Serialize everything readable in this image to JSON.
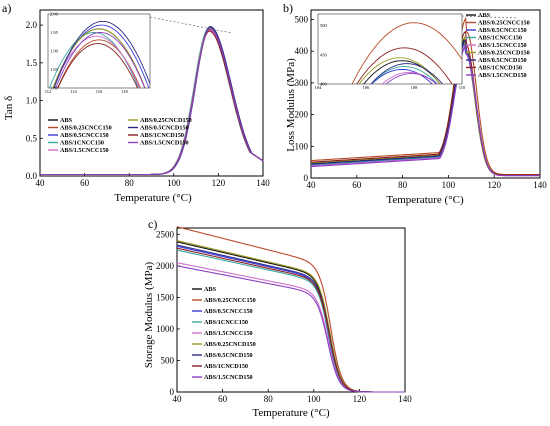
{
  "colors": {
    "ABS": "#111111",
    "ABS/0.25CNCC150": "#b84a2a",
    "ABS/0.5CNCC150": "#3b3bd6",
    "ABS/1CNCC150": "#3aa8a0",
    "ABS/1.5CNCC150": "#d070d0",
    "ABS/0.25CNCD150": "#9a9a20",
    "ABS/0.5CNCD150": "#2a2a8a",
    "ABS/1CNCD150": "#8a2020",
    "ABS/1.5CNCD150": "#8a40c0"
  },
  "chart_data": [
    {
      "id": "a",
      "type": "line",
      "panel_label": "a)",
      "xlabel": "Temperature (°C)",
      "ylabel": "Tan δ",
      "xlim": [
        40,
        140
      ],
      "ylim": [
        0,
        2.2
      ],
      "xticks": [
        40,
        60,
        80,
        100,
        120,
        140
      ],
      "yticks": [
        0.0,
        0.5,
        1.0,
        1.5,
        2.0
      ],
      "ytick_labels": [
        "0.0",
        "0.5",
        "1.0",
        "1.5",
        "2.0"
      ],
      "legend": {
        "placement": "lower-left, two columns",
        "col1": [
          {
            "label": "ABS",
            "series": "ABS"
          },
          {
            "label": "ABS/0.25CNCC150",
            "series": "ABS/0.25CNCC150"
          },
          {
            "label": "ABS/0.5CNCC150",
            "series": "ABS/0.5CNCC150"
          },
          {
            "label": "ABS/1CNCC150",
            "series": "ABS/1CNCC150"
          },
          {
            "label": "ABS/1.5CNCC150",
            "series": "ABS/1.5CNCC150"
          }
        ],
        "col2": [
          {
            "label": "ABS/0.25CNCD150",
            "series": "ABS/0.25CNCD150"
          },
          {
            "label": "ABS/0.5CNCD150",
            "series": "ABS/0.5CNCD150"
          },
          {
            "label": "ABS/1CNCD150",
            "series": "ABS/1CNCD150"
          },
          {
            "label": "ABS/1.5CNCD150",
            "series": "ABS/1.5CNCD150"
          }
        ]
      },
      "series": [
        {
          "name": "ABS",
          "peak_x": 116,
          "peak_y": 1.96,
          "base_y": 0.02
        },
        {
          "name": "ABS/0.25CNCC150",
          "peak_x": 116,
          "peak_y": 1.93,
          "base_y": 0.02
        },
        {
          "name": "ABS/0.5CNCC150",
          "peak_x": 116.2,
          "peak_y": 1.97,
          "base_y": 0.02
        },
        {
          "name": "ABS/1CNCC150",
          "peak_x": 115.6,
          "peak_y": 1.95,
          "base_y": 0.02
        },
        {
          "name": "ABS/1.5CNCC150",
          "peak_x": 115.8,
          "peak_y": 1.94,
          "base_y": 0.02
        },
        {
          "name": "ABS/0.25CNCD150",
          "peak_x": 116.0,
          "peak_y": 1.96,
          "base_y": 0.02
        },
        {
          "name": "ABS/0.5CNCD150",
          "peak_x": 116.3,
          "peak_y": 1.98,
          "base_y": 0.02
        },
        {
          "name": "ABS/1CNCD150",
          "peak_x": 115.9,
          "peak_y": 1.92,
          "base_y": 0.02
        },
        {
          "name": "ABS/1.5CNCD150",
          "peak_x": 116.1,
          "peak_y": 1.95,
          "base_y": 0.02
        }
      ],
      "inset": {
        "xlim": [
          112,
          120
        ],
        "ylim": [
          1.8,
          2.0
        ],
        "xticks": [
          112,
          114,
          116,
          118
        ],
        "yticks": [
          1.8,
          1.85,
          1.9,
          1.95,
          2.0
        ],
        "ytick_labels": [
          "1.80",
          "1.85",
          "1.90",
          "1.95",
          "2.00"
        ]
      }
    },
    {
      "id": "b",
      "type": "line",
      "panel_label": "b)",
      "xlabel": "Temperature (°C)",
      "ylabel": "Loss Modulus (MPa)",
      "xlim": [
        40,
        140
      ],
      "ylim": [
        0,
        530
      ],
      "xticks": [
        40,
        60,
        80,
        100,
        120,
        140
      ],
      "yticks": [
        0,
        100,
        200,
        300,
        400,
        500
      ],
      "ytick_labels": [
        "0",
        "100",
        "200",
        "300",
        "400",
        "500"
      ],
      "legend": {
        "placement": "top-right, one column",
        "col1": [
          {
            "label": "ABS",
            "series": "ABS"
          },
          {
            "label": "ABS/0.25CNCC150",
            "series": "ABS/0.25CNCC150"
          },
          {
            "label": "ABS/0.5CNCC150",
            "series": "ABS/0.5CNCC150"
          },
          {
            "label": "ABS/1CNCC150",
            "series": "ABS/1CNCC150"
          },
          {
            "label": "ABS/1.5CNCC150",
            "series": "ABS/1.5CNCC150"
          },
          {
            "label": "ABS/0.25CNCD150",
            "series": "ABS/0.25CNCD150"
          },
          {
            "label": "ABS/0.5CNCD150",
            "series": "ABS/0.5CNCD150"
          },
          {
            "label": "ABS/1CNCD150",
            "series": "ABS/1CNCD150"
          },
          {
            "label": "ABS/1.5CNCD150",
            "series": "ABS/1.5CNCD150"
          }
        ]
      },
      "series": [
        {
          "name": "ABS",
          "peak_x": 107.5,
          "peak_y": 440,
          "base_y": 45
        },
        {
          "name": "ABS/0.25CNCC150",
          "peak_x": 108,
          "peak_y": 505,
          "base_y": 55
        },
        {
          "name": "ABS/0.5CNCC150",
          "peak_x": 107.5,
          "peak_y": 425,
          "base_y": 40
        },
        {
          "name": "ABS/1CNCC150",
          "peak_x": 107.6,
          "peak_y": 430,
          "base_y": 42
        },
        {
          "name": "ABS/1.5CNCC150",
          "peak_x": 107.8,
          "peak_y": 420,
          "base_y": 38
        },
        {
          "name": "ABS/0.25CNCD150",
          "peak_x": 107.4,
          "peak_y": 445,
          "base_y": 48
        },
        {
          "name": "ABS/0.5CNCD150",
          "peak_x": 107.7,
          "peak_y": 435,
          "base_y": 44
        },
        {
          "name": "ABS/1CNCD150",
          "peak_x": 107.6,
          "peak_y": 462,
          "base_y": 50
        },
        {
          "name": "ABS/1.5CNCD150",
          "peak_x": 107.9,
          "peak_y": 418,
          "base_y": 36
        }
      ],
      "inset": {
        "xlim": [
          104,
          110
        ],
        "ylim": [
          400,
          520
        ],
        "xticks": [
          104,
          106,
          108,
          110
        ],
        "yticks": [
          400,
          450,
          500
        ],
        "ytick_labels": [
          "400",
          "450",
          "500"
        ]
      }
    },
    {
      "id": "c",
      "type": "line",
      "panel_label": "c)",
      "xlabel": "Temperature (°C)",
      "ylabel": "Storage Modulus (MPa)",
      "xlim": [
        40,
        140
      ],
      "ylim": [
        0,
        2600
      ],
      "xticks": [
        40,
        60,
        80,
        100,
        120,
        140
      ],
      "yticks": [
        0,
        500,
        1000,
        1500,
        2000,
        2500
      ],
      "ytick_labels": [
        "0",
        "500",
        "1000",
        "1500",
        "2000",
        "2500"
      ],
      "legend": {
        "placement": "center-left, one column",
        "col1": [
          {
            "label": "ABS",
            "series": "ABS"
          },
          {
            "label": "ABS/0.25CNCC150",
            "series": "ABS/0.25CNCC150"
          },
          {
            "label": "ABS/0.5CNCC150",
            "series": "ABS/0.5CNCC150"
          },
          {
            "label": "ABS/1CNCC150",
            "series": "ABS/1CNCC150"
          },
          {
            "label": "ABS/1.5CNCC150",
            "series": "ABS/1.5CNCC150"
          },
          {
            "label": "ABS/0.25CNCD150",
            "series": "ABS/0.25CNCD150"
          },
          {
            "label": "ABS/0.5CNCD150",
            "series": "ABS/0.5CNCD150"
          },
          {
            "label": "ABS/1CNCD150",
            "series": "ABS/1CNCD150"
          },
          {
            "label": "ABS/1.5CNCD150",
            "series": "ABS/1.5CNCD150"
          }
        ]
      },
      "series": [
        {
          "name": "ABS",
          "start_y": 2380,
          "drop_x": 107
        },
        {
          "name": "ABS/0.25CNCC150",
          "start_y": 2620,
          "drop_x": 107.5
        },
        {
          "name": "ABS/0.5CNCC150",
          "start_y": 2310,
          "drop_x": 106.5
        },
        {
          "name": "ABS/1CNCC150",
          "start_y": 2250,
          "drop_x": 106.8
        },
        {
          "name": "ABS/1.5CNCC150",
          "start_y": 2050,
          "drop_x": 106.5
        },
        {
          "name": "ABS/0.25CNCD150",
          "start_y": 2400,
          "drop_x": 107.2
        },
        {
          "name": "ABS/0.5CNCD150",
          "start_y": 2330,
          "drop_x": 107
        },
        {
          "name": "ABS/1CNCD150",
          "start_y": 2280,
          "drop_x": 107
        },
        {
          "name": "ABS/1.5CNCD150",
          "start_y": 2000,
          "drop_x": 106.3
        }
      ]
    }
  ]
}
